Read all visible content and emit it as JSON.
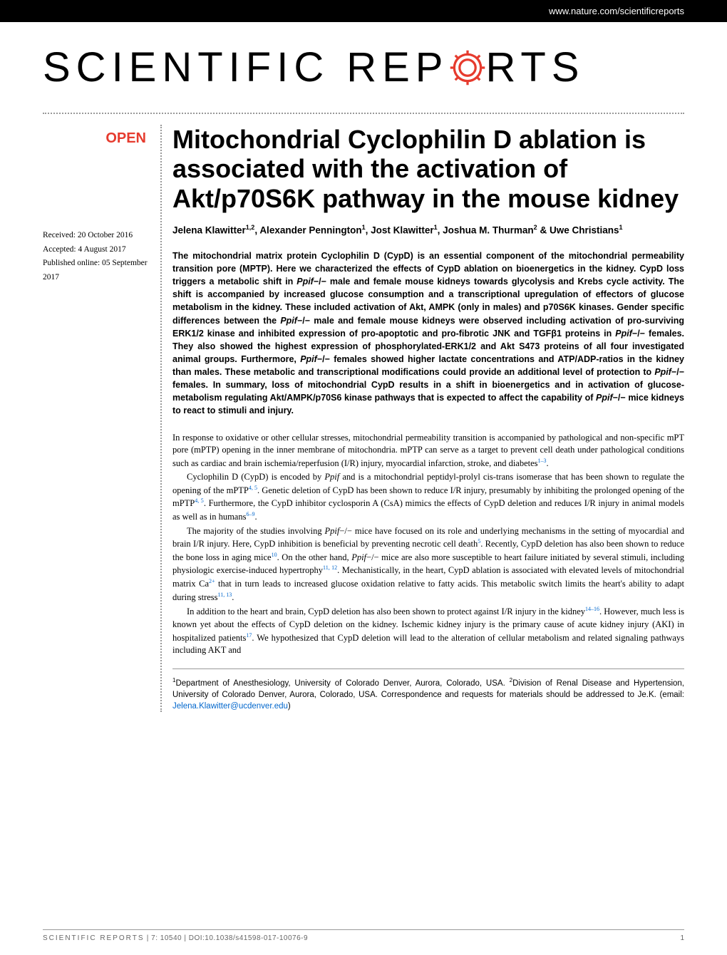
{
  "header": {
    "url": "www.nature.com/scientificreports"
  },
  "logo": {
    "text_before": "SCIENTIFIC",
    "text_mid": "REP",
    "text_after": "RTS",
    "gear_color": "#e63b2e"
  },
  "badge": {
    "open": "OPEN"
  },
  "dates": {
    "received": "Received: 20 October 2016",
    "accepted": "Accepted: 4 August 2017",
    "published": "Published online: 05 September 2017"
  },
  "article": {
    "title": "Mitochondrial Cyclophilin D ablation is associated with the activation of Akt/p70S6K pathway in the mouse kidney",
    "authors_html": "Jelena Klawitter<sup>1,2</sup>, Alexander Pennington<sup>1</sup>, Jost Klawitter<sup>1</sup>, Joshua M. Thurman<sup>2</sup> & Uwe Christians<sup>1</sup>"
  },
  "abstract": {
    "text": "The mitochondrial matrix protein Cyclophilin D (CypD) is an essential component of the mitochondrial permeability transition pore (MPTP). Here we characterized the effects of CypD ablation on bioenergetics in the kidney. CypD loss triggers a metabolic shift in <span class='ital'>Ppif</span>−/− male and female mouse kidneys towards glycolysis and Krebs cycle activity. The shift is accompanied by increased glucose consumption and a transcriptional upregulation of effectors of glucose metabolism in the kidney. These included activation of Akt, AMPK (only in males) and p70S6K kinases. Gender specific differences between the <span class='ital'>Ppif</span>−/− male and female mouse kidneys were observed including activation of pro-surviving ERK1/2 kinase and inhibited expression of pro-apoptotic and pro-fibrotic JNK and TGFβ1 proteins in <span class='ital'>Ppif</span>−/− females. They also showed the highest expression of phosphorylated-ERK1/2 and Akt S473 proteins of all four investigated animal groups. Furthermore, <span class='ital'>Ppif</span>−/− females showed higher lactate concentrations and ATP/ADP-ratios in the kidney than males. These metabolic and transcriptional modifications could provide an additional level of protection to <span class='ital'>Ppif</span>−/− females. In summary, loss of mitochondrial CypD results in a shift in bioenergetics and in activation of glucose-metabolism regulating Akt/AMPK/p70S6 kinase pathways that is expected to affect the capability of <span class='ital'>Ppif</span>−/− mice kidneys to react to stimuli and injury."
  },
  "body": {
    "p1": "In response to oxidative or other cellular stresses, mitochondrial permeability transition is accompanied by pathological and non-specific mPT pore (mPTP) opening in the inner membrane of mitochondria. mPTP can serve as a target to prevent cell death under pathological conditions such as cardiac and brain ischemia/reperfusion (I/R) injury, myocardial infarction, stroke, and diabetes<sup>1–3</sup>.",
    "p2": "Cyclophilin D (CypD) is encoded by <span class='ital'>Ppif</span> and is a mitochondrial peptidyl-prolyl cis-trans isomerase that has been shown to regulate the opening of the mPTP<sup>4, 5</sup>. Genetic deletion of CypD has been shown to reduce I/R injury, presumably by inhibiting the prolonged opening of the mPTP<sup>4, 5</sup>. Furthermore, the CypD inhibitor cyclosporin A (CsA) mimics the effects of CypD deletion and reduces I/R injury in animal models as well as in humans<sup>6–9</sup>.",
    "p3": "The majority of the studies involving <span class='ital'>Ppif</span>−/− mice have focused on its role and underlying mechanisms in the setting of myocardial and brain I/R injury. Here, CypD inhibition is beneficial by preventing necrotic cell death<sup>5</sup>. Recently, CypD deletion has also been shown to reduce the bone loss in aging mice<sup>10</sup>. On the other hand, <span class='ital'>Ppif</span>−/− mice are also more susceptible to heart failure initiated by several stimuli, including physiologic exercise-induced hypertrophy<sup>11, 12</sup>. Mechanistically, in the heart, CypD ablation is associated with elevated levels of mitochondrial matrix Ca<sup>2+</sup> that in turn leads to increased glucose oxidation relative to fatty acids. This metabolic switch limits the heart's ability to adapt during stress<sup>11, 13</sup>.",
    "p4": "In addition to the heart and brain, CypD deletion has also been shown to protect against I/R injury in the kidney<sup>14–16</sup>. However, much less is known yet about the effects of CypD deletion on the kidney. Ischemic kidney injury is the primary cause of acute kidney injury (AKI) in hospitalized patients<sup>17</sup>. We hypothesized that CypD deletion will lead to the alteration of cellular metabolism and related signaling pathways including AKT and"
  },
  "affiliations": {
    "text": "<sup>1</sup>Department of Anesthesiology, University of Colorado Denver, Aurora, Colorado, USA. <sup>2</sup>Division of Renal Disease and Hypertension, University of Colorado Denver, Aurora, Colorado, USA. Correspondence and requests for materials should be addressed to Je.K. (email: ",
    "email": "Jelena.Klawitter@ucdenver.edu",
    "text_end": ")"
  },
  "footer": {
    "journal": "SCIENTIFIC REPORTS",
    "citation": " | 7: 10540 | DOI:10.1038/s41598-017-10076-9",
    "page": "1"
  },
  "colors": {
    "accent": "#e63b2e",
    "link": "#0066cc",
    "text": "#000000",
    "muted": "#666666"
  }
}
